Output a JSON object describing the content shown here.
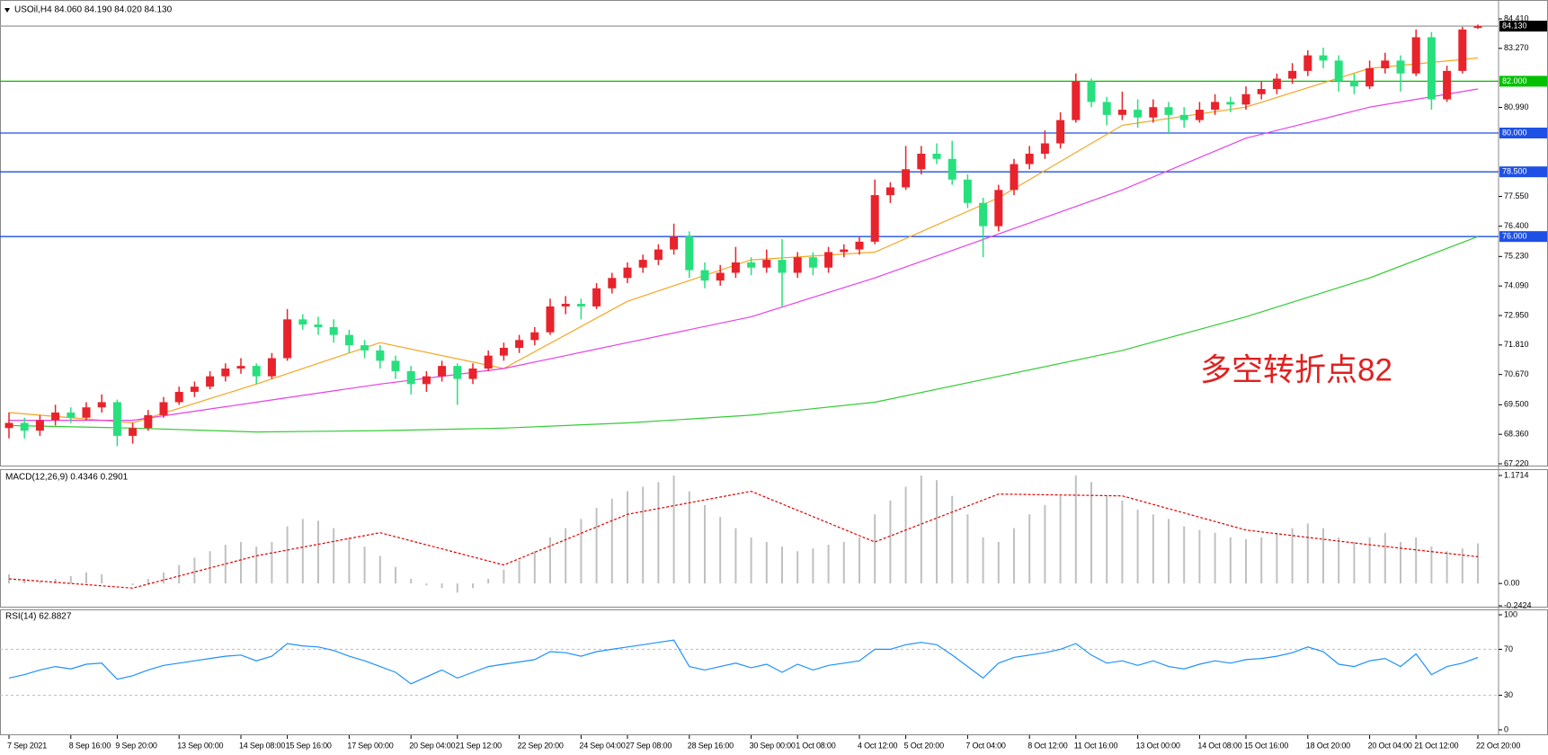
{
  "chart_data": [
    {
      "type": "candlestick",
      "title": "USOil,H4 84.060 84.190 84.020 84.130",
      "categories": [
        "7 Sep 2021",
        null,
        null,
        null,
        "8 Sep 16:00",
        null,
        null,
        "9 Sep 20:00",
        null,
        null,
        null,
        "13 Sep 00:00",
        null,
        null,
        null,
        "14 Sep 08:00",
        null,
        null,
        "15 Sep 16:00",
        null,
        null,
        null,
        "17 Sep 00:00",
        null,
        null,
        null,
        "20 Sep 04:00",
        null,
        null,
        "21 Sep 12:00",
        null,
        null,
        null,
        "22 Sep 20:00",
        null,
        null,
        null,
        "24 Sep 04:00",
        null,
        null,
        "27 Sep 08:00",
        null,
        null,
        null,
        "28 Sep 16:00",
        null,
        null,
        null,
        "30 Sep 00:00",
        null,
        null,
        "1 Oct 08:00",
        null,
        null,
        null,
        "4 Oct 12:00",
        null,
        null,
        "5 Oct 20:00",
        null,
        null,
        null,
        "7 Oct 04:00",
        null,
        null,
        null,
        "8 Oct 12:00",
        null,
        null,
        "11 Oct 16:00",
        null,
        null,
        null,
        "13 Oct 00:00",
        null,
        null,
        null,
        "14 Oct 08:00",
        null,
        null,
        "15 Oct 16:00",
        null,
        null,
        null,
        "18 Oct 20:00",
        null,
        null,
        null,
        "20 Oct 04:00",
        null,
        null,
        "21 Oct 12:00",
        null,
        null,
        null,
        "22 Oct 20:00"
      ],
      "ohlc": [
        [
          68.6,
          69.2,
          68.2,
          68.8
        ],
        [
          68.8,
          69.0,
          68.2,
          68.5
        ],
        [
          68.5,
          69.1,
          68.3,
          68.9
        ],
        [
          68.9,
          69.5,
          68.7,
          69.2
        ],
        [
          69.2,
          69.4,
          68.8,
          69.0
        ],
        [
          69.0,
          69.6,
          68.9,
          69.4
        ],
        [
          69.4,
          69.9,
          69.2,
          69.6
        ],
        [
          69.6,
          69.7,
          67.9,
          68.3
        ],
        [
          68.3,
          68.8,
          68.0,
          68.6
        ],
        [
          68.6,
          69.3,
          68.5,
          69.1
        ],
        [
          69.1,
          69.8,
          69.0,
          69.6
        ],
        [
          69.6,
          70.2,
          69.5,
          70.0
        ],
        [
          70.0,
          70.4,
          69.8,
          70.2
        ],
        [
          70.2,
          70.8,
          70.1,
          70.6
        ],
        [
          70.6,
          71.1,
          70.4,
          70.9
        ],
        [
          70.9,
          71.3,
          70.7,
          71.0
        ],
        [
          71.0,
          71.1,
          70.3,
          70.6
        ],
        [
          70.6,
          71.5,
          70.5,
          71.3
        ],
        [
          71.3,
          73.2,
          71.2,
          72.8
        ],
        [
          72.8,
          73.0,
          72.4,
          72.6
        ],
        [
          72.6,
          72.9,
          72.2,
          72.5
        ],
        [
          72.5,
          72.8,
          71.9,
          72.2
        ],
        [
          72.2,
          72.4,
          71.5,
          71.8
        ],
        [
          71.8,
          72.0,
          71.3,
          71.6
        ],
        [
          71.6,
          71.8,
          70.9,
          71.2
        ],
        [
          71.2,
          71.4,
          70.5,
          70.8
        ],
        [
          70.8,
          71.0,
          69.9,
          70.3
        ],
        [
          70.3,
          70.8,
          70.0,
          70.6
        ],
        [
          70.6,
          71.2,
          70.4,
          71.0
        ],
        [
          71.0,
          71.1,
          69.5,
          70.5
        ],
        [
          70.5,
          71.1,
          70.3,
          70.9
        ],
        [
          70.9,
          71.6,
          70.8,
          71.4
        ],
        [
          71.4,
          71.9,
          71.2,
          71.7
        ],
        [
          71.7,
          72.2,
          71.5,
          72.0
        ],
        [
          72.0,
          72.5,
          71.8,
          72.3
        ],
        [
          72.3,
          73.6,
          72.2,
          73.3
        ],
        [
          73.3,
          73.7,
          73.0,
          73.4
        ],
        [
          73.4,
          73.6,
          72.8,
          73.3
        ],
        [
          73.3,
          74.2,
          73.2,
          74.0
        ],
        [
          74.0,
          74.6,
          73.8,
          74.4
        ],
        [
          74.4,
          75.0,
          74.2,
          74.8
        ],
        [
          74.8,
          75.3,
          74.6,
          75.1
        ],
        [
          75.1,
          75.7,
          74.9,
          75.5
        ],
        [
          75.5,
          76.5,
          75.3,
          76.0
        ],
        [
          76.0,
          76.2,
          74.4,
          74.7
        ],
        [
          74.7,
          75.0,
          74.0,
          74.3
        ],
        [
          74.3,
          74.9,
          74.1,
          74.6
        ],
        [
          74.6,
          75.6,
          74.4,
          75.0
        ],
        [
          75.0,
          75.2,
          74.5,
          74.8
        ],
        [
          74.8,
          75.5,
          74.6,
          75.1
        ],
        [
          75.1,
          75.9,
          73.3,
          74.6
        ],
        [
          74.6,
          75.4,
          74.4,
          75.2
        ],
        [
          75.2,
          75.4,
          74.5,
          74.8
        ],
        [
          74.8,
          75.6,
          74.6,
          75.4
        ],
        [
          75.4,
          75.7,
          75.2,
          75.5
        ],
        [
          75.5,
          76.0,
          75.3,
          75.8
        ],
        [
          75.8,
          78.2,
          75.7,
          77.6
        ],
        [
          77.6,
          78.1,
          77.3,
          77.9
        ],
        [
          77.9,
          79.5,
          77.8,
          78.6
        ],
        [
          78.6,
          79.5,
          78.4,
          79.2
        ],
        [
          79.2,
          79.6,
          78.8,
          79.0
        ],
        [
          79.0,
          79.7,
          78.0,
          78.2
        ],
        [
          78.2,
          78.4,
          77.1,
          77.3
        ],
        [
          77.3,
          77.5,
          75.2,
          76.4
        ],
        [
          76.4,
          78.0,
          76.2,
          77.8
        ],
        [
          77.8,
          79.0,
          77.6,
          78.8
        ],
        [
          78.8,
          79.5,
          78.6,
          79.2
        ],
        [
          79.2,
          80.1,
          79.0,
          79.6
        ],
        [
          79.6,
          80.8,
          79.4,
          80.5
        ],
        [
          80.5,
          82.3,
          80.4,
          82.0
        ],
        [
          82.0,
          82.1,
          81.0,
          81.2
        ],
        [
          81.2,
          81.4,
          80.3,
          80.7
        ],
        [
          80.7,
          81.6,
          80.5,
          80.9
        ],
        [
          80.9,
          81.3,
          80.2,
          80.6
        ],
        [
          80.6,
          81.3,
          80.4,
          81.0
        ],
        [
          81.0,
          81.2,
          80.0,
          80.7
        ],
        [
          80.7,
          81.0,
          80.2,
          80.5
        ],
        [
          80.5,
          81.2,
          80.4,
          80.9
        ],
        [
          80.9,
          81.5,
          80.7,
          81.2
        ],
        [
          81.2,
          81.4,
          80.8,
          81.1
        ],
        [
          81.1,
          81.8,
          80.9,
          81.5
        ],
        [
          81.5,
          82.0,
          81.3,
          81.7
        ],
        [
          81.7,
          82.3,
          81.5,
          82.1
        ],
        [
          82.1,
          82.7,
          81.9,
          82.4
        ],
        [
          82.4,
          83.2,
          82.2,
          83.0
        ],
        [
          83.0,
          83.3,
          82.5,
          82.8
        ],
        [
          82.8,
          83.0,
          81.6,
          82.0
        ],
        [
          82.0,
          82.3,
          81.5,
          81.8
        ],
        [
          81.8,
          82.8,
          81.7,
          82.5
        ],
        [
          82.5,
          83.1,
          82.3,
          82.8
        ],
        [
          82.8,
          83.0,
          81.6,
          82.3
        ],
        [
          82.3,
          84.0,
          82.2,
          83.7
        ],
        [
          83.7,
          83.9,
          80.9,
          81.3
        ],
        [
          81.3,
          82.6,
          81.2,
          82.4
        ],
        [
          82.4,
          84.1,
          82.3,
          84.0
        ],
        [
          84.06,
          84.19,
          84.02,
          84.13
        ]
      ],
      "up_color": "#e8232b",
      "down_color": "#27e07d",
      "lines": [
        {
          "color": "#f5a623",
          "x": [
            0,
            8,
            16,
            24,
            32,
            40,
            48,
            56,
            64,
            72,
            80,
            88,
            95
          ],
          "values": [
            69.2,
            68.8,
            70.3,
            71.9,
            70.9,
            73.5,
            75.1,
            75.4,
            77.5,
            80.3,
            81.0,
            82.5,
            82.9
          ]
        },
        {
          "color": "#e83ee8",
          "x": [
            0,
            8,
            16,
            24,
            32,
            40,
            48,
            56,
            64,
            72,
            80,
            88,
            95
          ],
          "values": [
            68.9,
            68.9,
            69.6,
            70.3,
            70.9,
            71.9,
            72.9,
            74.4,
            76.1,
            77.8,
            79.8,
            81.0,
            81.7
          ]
        },
        {
          "color": "#33cc33",
          "x": [
            0,
            8,
            16,
            24,
            32,
            40,
            48,
            56,
            64,
            72,
            80,
            88,
            95
          ],
          "values": [
            68.7,
            68.6,
            68.45,
            68.5,
            68.6,
            68.8,
            69.1,
            69.6,
            70.6,
            71.6,
            72.9,
            74.4,
            76.0
          ]
        }
      ],
      "levels": [
        {
          "value": 84.13,
          "label": "84.130",
          "color": "#a0a0a0",
          "box_color": "#000000"
        },
        {
          "value": 82,
          "label": "82.000",
          "color": "#00c000",
          "box_color": "#00c000"
        },
        {
          "value": 80,
          "label": "80.000",
          "color": "#1e50e6",
          "box_color": "#1e50e6"
        },
        {
          "value": 78.5,
          "label": "78.500",
          "color": "#1e50e6",
          "box_color": "#1e50e6"
        },
        {
          "value": 76,
          "label": "76.000",
          "color": "#1e50e6",
          "box_color": "#1e50e6"
        }
      ],
      "ylim": [
        67.22,
        84.41
      ],
      "yticks": [
        {
          "value": 84.41,
          "label": "84.410"
        },
        {
          "value": 83.27,
          "label": "83.270"
        },
        {
          "value": 80.99,
          "label": "80.990"
        },
        {
          "value": 77.55,
          "label": "77.550"
        },
        {
          "value": 76.4,
          "label": "76.400"
        },
        {
          "value": 75.23,
          "label": "75.230"
        },
        {
          "value": 74.09,
          "label": "74.090"
        },
        {
          "value": 72.95,
          "label": "72.950"
        },
        {
          "value": 71.81,
          "label": "71.810"
        },
        {
          "value": 70.67,
          "label": "70.670"
        },
        {
          "value": 69.5,
          "label": "69.500"
        },
        {
          "value": 68.36,
          "label": "68.360"
        },
        {
          "value": 67.22,
          "label": "67.220"
        }
      ],
      "annotation": "多空转折点82",
      "annotation_color": "#e02020"
    },
    {
      "type": "macd",
      "title": "MACD(12,26,9) 0.4346 0.2901",
      "color": "#c0c0c0",
      "values": [
        0.1,
        0.05,
        0.02,
        0.05,
        0.08,
        0.12,
        0.1,
        0.0,
        -0.02,
        0.05,
        0.12,
        0.2,
        0.28,
        0.35,
        0.42,
        0.45,
        0.4,
        0.45,
        0.62,
        0.7,
        0.68,
        0.6,
        0.5,
        0.4,
        0.3,
        0.18,
        0.05,
        -0.02,
        -0.05,
        -0.1,
        -0.05,
        0.05,
        0.15,
        0.25,
        0.35,
        0.5,
        0.6,
        0.7,
        0.82,
        0.92,
        1.0,
        1.05,
        1.1,
        1.17,
        1.0,
        0.85,
        0.72,
        0.6,
        0.5,
        0.45,
        0.4,
        0.35,
        0.38,
        0.42,
        0.45,
        0.5,
        0.75,
        0.9,
        1.05,
        1.17,
        1.12,
        0.95,
        0.75,
        0.5,
        0.45,
        0.6,
        0.75,
        0.85,
        0.95,
        1.17,
        1.1,
        0.95,
        0.9,
        0.8,
        0.75,
        0.7,
        0.62,
        0.58,
        0.55,
        0.5,
        0.48,
        0.5,
        0.55,
        0.6,
        0.65,
        0.6,
        0.5,
        0.45,
        0.5,
        0.55,
        0.45,
        0.5,
        0.4,
        0.35,
        0.38,
        0.4346
      ],
      "signal": {
        "color": "#e00000",
        "x": [
          0,
          8,
          16,
          24,
          32,
          40,
          48,
          56,
          64,
          72,
          80,
          88,
          95
        ],
        "values": [
          0.05,
          -0.05,
          0.3,
          0.55,
          0.2,
          0.75,
          1.0,
          0.45,
          0.97,
          0.95,
          0.58,
          0.42,
          0.2901
        ]
      },
      "ylim": [
        -0.2424,
        1.1714
      ],
      "yticks": [
        1.1714,
        {
          "value": 0,
          "label": "0.00"
        },
        -0.2424
      ]
    },
    {
      "type": "line",
      "title": "RSI(14) 62.8827",
      "color": "#1e90ff",
      "values": [
        45,
        48,
        52,
        55,
        53,
        57,
        58,
        44,
        47,
        52,
        56,
        58,
        60,
        62,
        64,
        65,
        60,
        64,
        75,
        73,
        72,
        69,
        64,
        60,
        55,
        50,
        40,
        46,
        52,
        45,
        50,
        55,
        57,
        59,
        61,
        68,
        67,
        64,
        68,
        70,
        72,
        74,
        76,
        78,
        55,
        52,
        55,
        58,
        54,
        57,
        50,
        57,
        52,
        56,
        58,
        60,
        70,
        70,
        74,
        76,
        74,
        65,
        55,
        45,
        58,
        63,
        65,
        67,
        70,
        75,
        65,
        58,
        60,
        56,
        60,
        55,
        53,
        57,
        60,
        58,
        61,
        62,
        64,
        67,
        72,
        68,
        57,
        55,
        60,
        62,
        55,
        66,
        48,
        55,
        58,
        62.8827
      ],
      "ylim": [
        0,
        100
      ],
      "yticks": [
        100,
        70,
        30,
        0
      ]
    }
  ]
}
